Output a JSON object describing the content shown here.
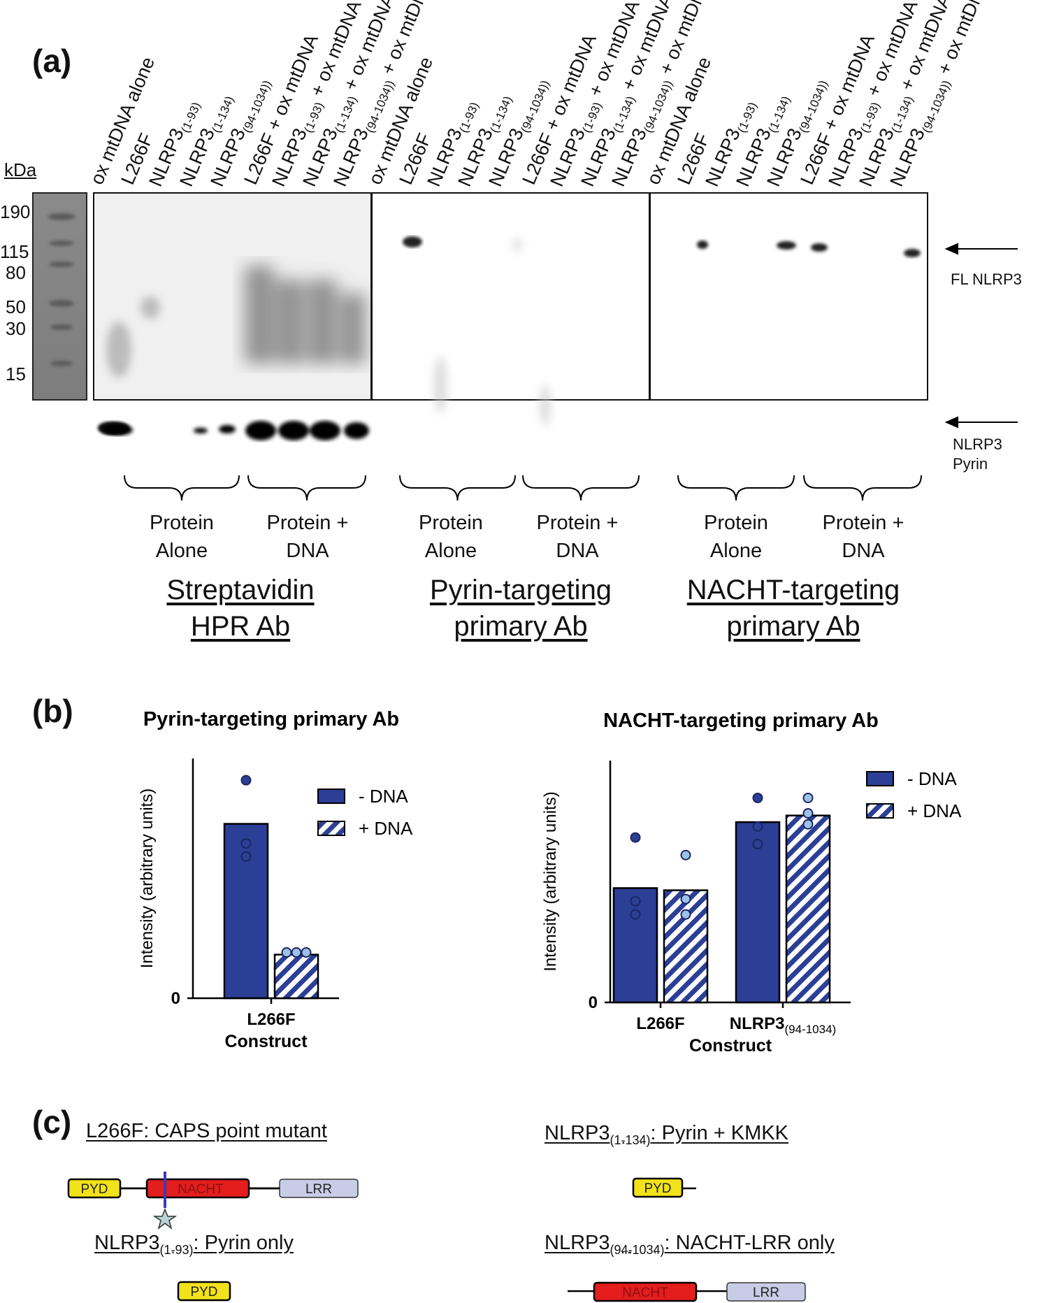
{
  "panels": {
    "a": "(a)",
    "b": "(b)",
    "c": "(c)"
  },
  "blot": {
    "kda_label": "kDa",
    "markers": [
      "190",
      "115",
      "80",
      "50",
      "30",
      "15"
    ],
    "lanes": [
      {
        "base": "ox mtDNA alone",
        "sub": "",
        "tail": ""
      },
      {
        "base": "L266F",
        "sub": "",
        "tail": ""
      },
      {
        "base": "NLRP3",
        "sub": "(1-93)",
        "tail": ""
      },
      {
        "base": "NLRP3",
        "sub": "(1-134)",
        "tail": ""
      },
      {
        "base": "NLRP3",
        "sub": "(94-1034))",
        "tail": ""
      },
      {
        "base": "L266F + ox mtDNA",
        "sub": "",
        "tail": ""
      },
      {
        "base": "NLRP3",
        "sub": "(1-93)",
        "tail": " + ox mtDNA"
      },
      {
        "base": "NLRP3",
        "sub": "(1-134)",
        "tail": " + ox mtDNA"
      },
      {
        "base": "NLRP3",
        "sub": "(94-1034))",
        "tail": " + ox mtDNA"
      }
    ],
    "groups": [
      {
        "protein_alone": "Protein\nAlone",
        "protein_dna": "Protein +\nDNA",
        "title": "Streptavidin\nHPR Ab"
      },
      {
        "protein_alone": "Protein\nAlone",
        "protein_dna": "Protein +\nDNA",
        "title": "Pyrin-targeting\nprimary Ab"
      },
      {
        "protein_alone": "Protein\nAlone",
        "protein_dna": "Protein +\nDNA",
        "title": "NACHT-targeting\nprimary Ab"
      }
    ],
    "arrows": [
      {
        "label": "FL NLRP3"
      },
      {
        "label": "NLRP3\nPyrin"
      }
    ]
  },
  "chart_data": [
    {
      "type": "bar",
      "title": "Pyrin-targeting primary Ab",
      "xlabel": "Construct",
      "ylabel": "Intensity (arbitrary units)",
      "yticks": [
        "0"
      ],
      "ylim": [
        0,
        1.1
      ],
      "categories": [
        {
          "base": "L266F",
          "sub": ""
        }
      ],
      "series": [
        {
          "name": "- DNA",
          "pattern": "solid",
          "color": "#2b3f96",
          "dot_color": "#2b3f96",
          "values": [
            0.8
          ],
          "points": [
            [
              1.0,
              0.71,
              0.65
            ]
          ]
        },
        {
          "name": "+ DNA",
          "pattern": "striped",
          "color": "#2b3f96",
          "dot_color": "#9cc2e8",
          "values": [
            0.2
          ],
          "points": [
            [
              0.21,
              0.21,
              0.21
            ]
          ]
        }
      ]
    },
    {
      "type": "bar",
      "title": "NACHT-targeting primary Ab",
      "xlabel": "Construct",
      "ylabel": "Intensity (arbitrary units)",
      "yticks": [
        "0"
      ],
      "ylim": [
        0,
        1.1
      ],
      "categories": [
        {
          "base": "L266F",
          "sub": ""
        },
        {
          "base": "NLRP3",
          "sub": "(94-1034)"
        }
      ],
      "series": [
        {
          "name": "- DNA",
          "pattern": "solid",
          "color": "#2b3f96",
          "dot_color": "#2b3f96",
          "values": [
            0.52,
            0.82
          ],
          "points": [
            [
              0.75,
              0.46,
              0.4
            ],
            [
              0.93,
              0.8,
              0.72
            ]
          ]
        },
        {
          "name": "+ DNA",
          "pattern": "striped",
          "color": "#2b3f96",
          "dot_color": "#9cc2e8",
          "values": [
            0.51,
            0.85
          ],
          "points": [
            [
              0.67,
              0.47,
              0.4
            ],
            [
              0.93,
              0.86,
              0.81
            ]
          ]
        }
      ]
    }
  ],
  "constructs": [
    {
      "base": "L266F: CAPS point mutant",
      "sub": "",
      "tail": "",
      "domains": [
        "PYD",
        "NACHT",
        "LRR"
      ]
    },
    {
      "base": "NLRP3",
      "sub": "(1-134)",
      "tail": ": Pyrin + KMKK",
      "domains": [
        "PYD"
      ]
    },
    {
      "base": "NLRP3",
      "sub": "(1-93)",
      "tail": ": Pyrin only",
      "domains": [
        "PYD"
      ]
    },
    {
      "base": "NLRP3",
      "sub": "(94-1034)",
      "tail": ": NACHT-LRR only",
      "domains": [
        "NACHT",
        "LRR"
      ]
    }
  ],
  "colors": {
    "pyd": "#f2e21a",
    "nacht": "#e41d1d",
    "lrr": "#c9cce6",
    "bar": "#2b3f96",
    "mutation": "#3b3bb8"
  }
}
